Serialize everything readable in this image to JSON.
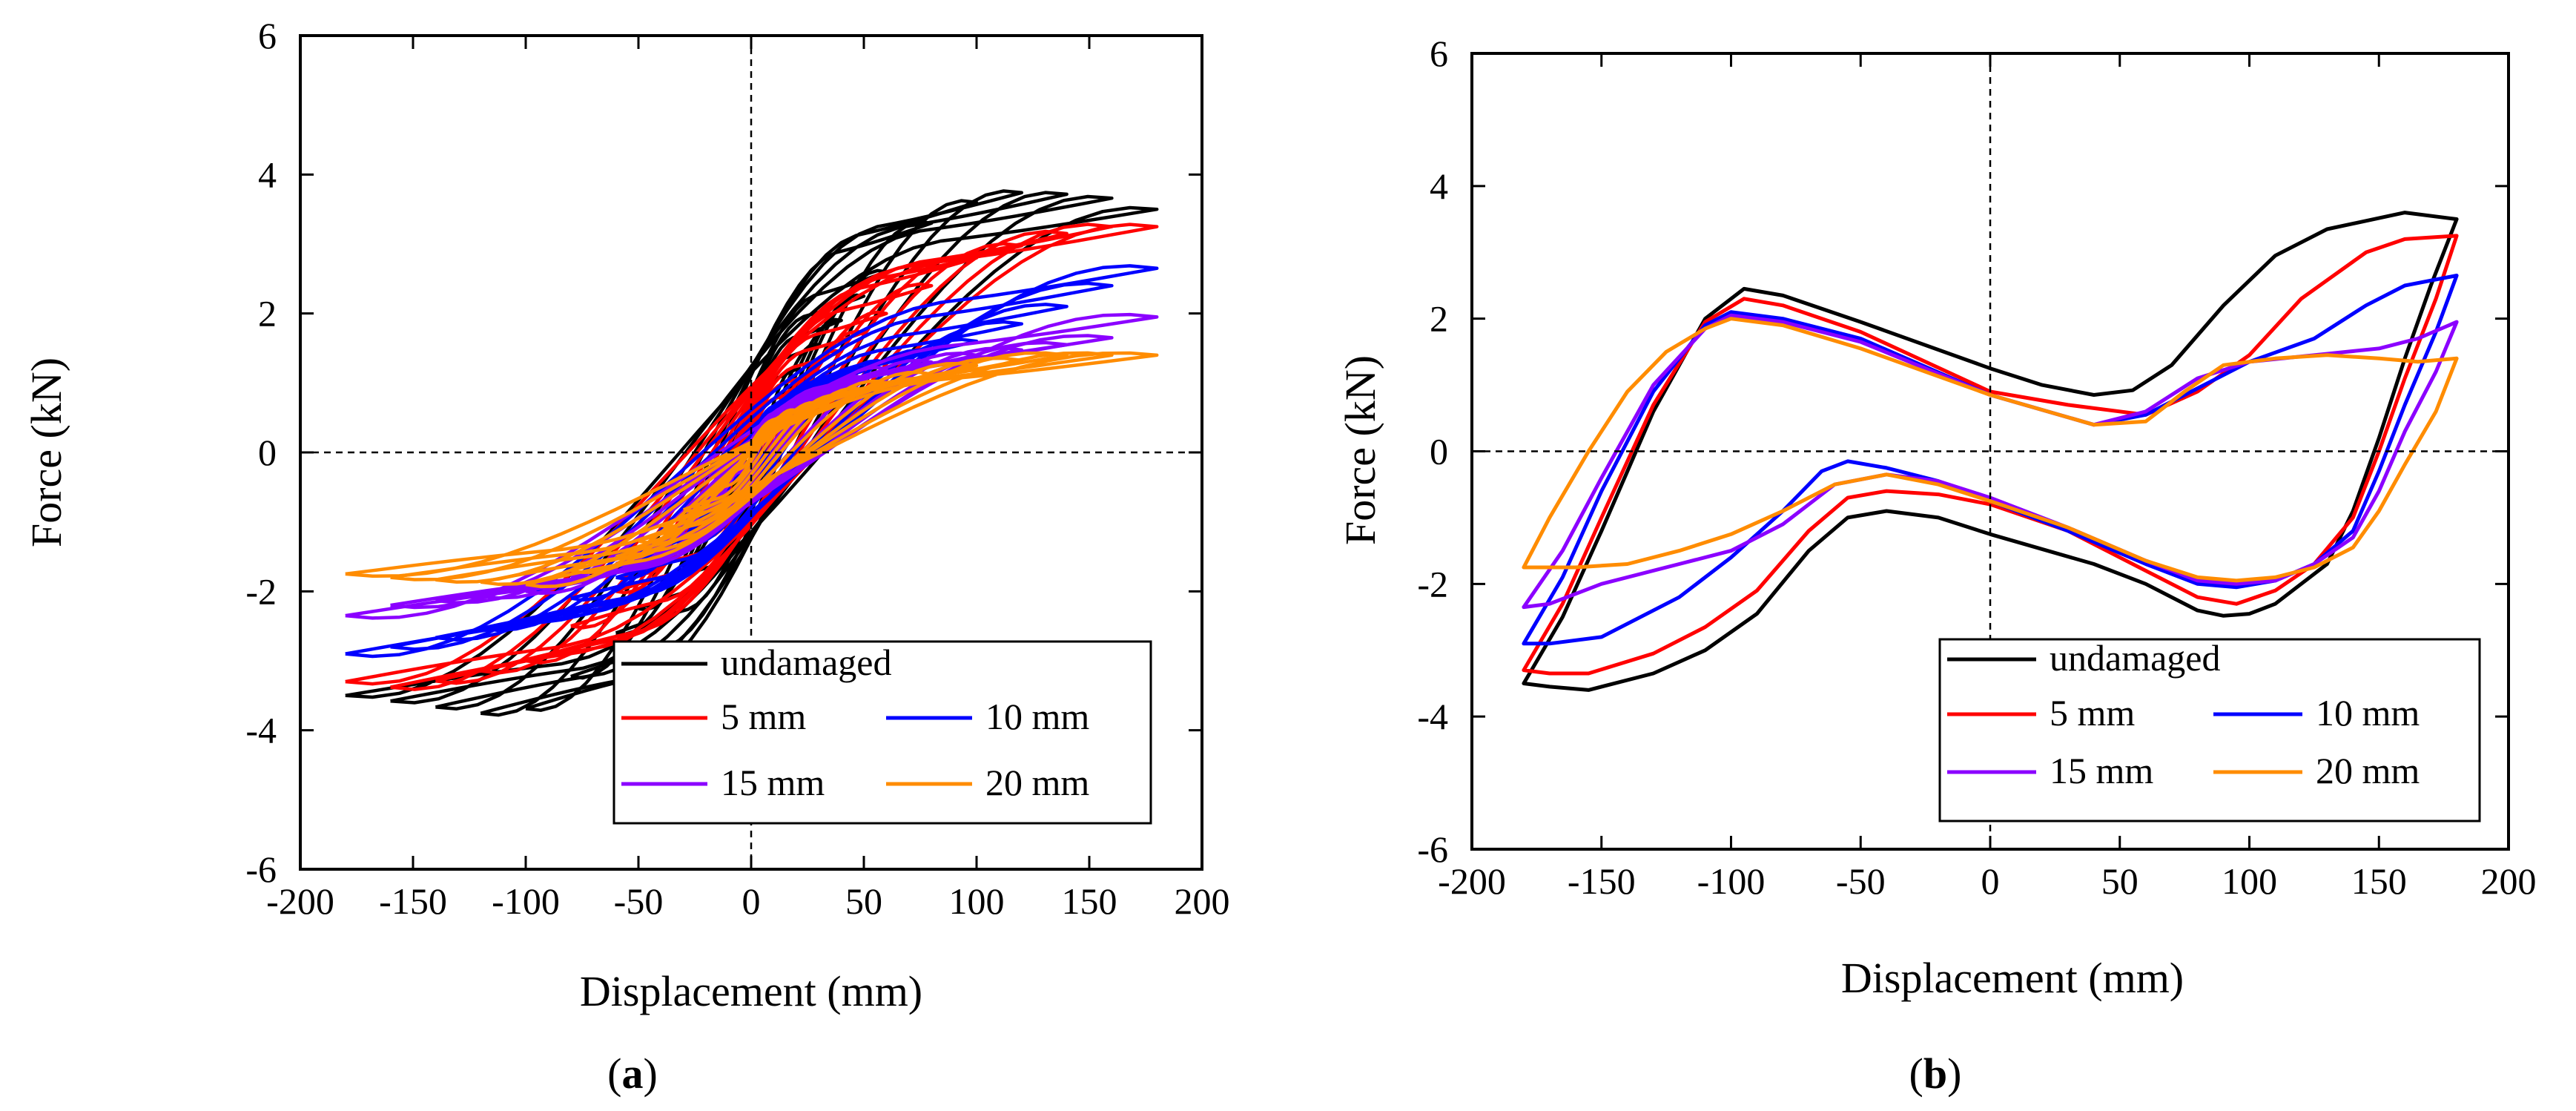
{
  "chart_data": [
    {
      "type": "line",
      "panel_label": {
        "open": "(",
        "letter": "a",
        "close": ")"
      },
      "xlabel": "Displacement (mm)",
      "ylabel": "Force (kN)",
      "xlim": [
        -200,
        200
      ],
      "ylim": [
        -6,
        6
      ],
      "xticks": [
        -200,
        -150,
        -100,
        -50,
        0,
        50,
        100,
        150,
        200
      ],
      "yticks": [
        -6,
        -4,
        -2,
        0,
        2,
        4,
        6
      ],
      "zero_lines": "dashed",
      "legend_position": "bottom-right",
      "curve_kind": "hysteresis loops, multiple cycles per series",
      "series": [
        {
          "name": "undamaged",
          "color": "#000000",
          "peak_displacements_mm": [
            10,
            20,
            30,
            40,
            50,
            60,
            80,
            100,
            120,
            140,
            160,
            180
          ],
          "envelope": {
            "x": [
              -180,
              -155,
              -110,
              -92,
              -60,
              -20,
              20,
              60,
              80,
              110,
              155,
              180
            ],
            "y": [
              -3.5,
              -3.6,
              -3.8,
              -3.6,
              -2.6,
              -1.2,
              1.2,
              2.6,
              3.3,
              3.75,
              3.7,
              3.5
            ]
          }
        },
        {
          "name": "5  mm",
          "color": "#ff0000",
          "peak_displacements_mm": [
            10,
            20,
            30,
            40,
            50,
            60,
            80,
            100,
            120,
            140,
            160,
            180
          ],
          "envelope": {
            "x": [
              -180,
              -155,
              -100,
              -60,
              -20,
              20,
              60,
              100,
              140,
              160,
              180
            ],
            "y": [
              -3.3,
              -3.4,
              -3.0,
              -2.0,
              -0.9,
              0.9,
              2.0,
              2.8,
              3.15,
              3.25,
              3.25
            ]
          }
        },
        {
          "name": "10 mm",
          "color": "#0000ff",
          "peak_displacements_mm": [
            10,
            20,
            30,
            40,
            50,
            60,
            80,
            100,
            120,
            140,
            160,
            180
          ],
          "envelope": {
            "x": [
              -180,
              -160,
              -100,
              -60,
              -20,
              20,
              60,
              100,
              140,
              160,
              180
            ],
            "y": [
              -2.9,
              -2.8,
              -2.4,
              -1.8,
              -0.8,
              0.8,
              1.3,
              1.6,
              2.1,
              2.4,
              2.65
            ]
          }
        },
        {
          "name": "15 mm",
          "color": "#8b00ff",
          "peak_displacements_mm": [
            10,
            20,
            30,
            40,
            50,
            60,
            80,
            100,
            120,
            140,
            160,
            180
          ],
          "envelope": {
            "x": [
              -180,
              -160,
              -100,
              -60,
              -20,
              20,
              60,
              100,
              140,
              160,
              180
            ],
            "y": [
              -2.35,
              -2.2,
              -2.0,
              -1.6,
              -0.7,
              0.7,
              1.2,
              1.4,
              1.55,
              1.65,
              1.95
            ]
          }
        },
        {
          "name": "20 mm",
          "color": "#ff8c00",
          "peak_displacements_mm": [
            10,
            20,
            30,
            40,
            50,
            60,
            80,
            100,
            120,
            140,
            160,
            180
          ],
          "envelope": {
            "x": [
              -180,
              -160,
              -100,
              -60,
              -20,
              20,
              60,
              100,
              140,
              160,
              180
            ],
            "y": [
              -1.75,
              -1.8,
              -1.9,
              -1.5,
              -0.6,
              0.6,
              1.0,
              1.25,
              1.4,
              1.4,
              1.4
            ]
          }
        }
      ]
    },
    {
      "type": "line",
      "panel_label": {
        "open": "(",
        "letter": "b",
        "close": ")"
      },
      "xlabel": "Displacement (mm)",
      "ylabel": "Force (kN)",
      "xlim": [
        -200,
        200
      ],
      "ylim": [
        -6,
        6
      ],
      "xticks": [
        -200,
        -150,
        -100,
        -50,
        0,
        50,
        100,
        150,
        200
      ],
      "yticks": [
        -6,
        -4,
        -2,
        0,
        2,
        4,
        6
      ],
      "zero_lines": "dashed",
      "legend_position": "bottom-right",
      "curve_kind": "single hysteresis loop at +/-180 mm",
      "series": [
        {
          "name": "undamaged",
          "color": "#000000",
          "x": [
            -180,
            -165,
            -150,
            -130,
            -110,
            -95,
            -80,
            -50,
            0,
            20,
            40,
            55,
            70,
            90,
            110,
            130,
            160,
            180,
            170,
            160,
            150,
            140,
            130,
            110,
            100,
            90,
            80,
            60,
            40,
            0,
            -20,
            -40,
            -55,
            -70,
            -90,
            -110,
            -130,
            -155,
            -170,
            -180
          ],
          "y": [
            -3.5,
            -2.5,
            -1.2,
            0.6,
            2.0,
            2.45,
            2.35,
            1.95,
            1.25,
            1.0,
            0.85,
            0.92,
            1.3,
            2.2,
            2.95,
            3.35,
            3.6,
            3.5,
            2.5,
            1.4,
            0.2,
            -0.9,
            -1.7,
            -2.3,
            -2.45,
            -2.48,
            -2.4,
            -2.0,
            -1.7,
            -1.25,
            -1.0,
            -0.9,
            -1.0,
            -1.5,
            -2.45,
            -3.0,
            -3.35,
            -3.6,
            -3.55,
            -3.5
          ]
        },
        {
          "name": "5  mm",
          "color": "#ff0000",
          "x": [
            -180,
            -165,
            -150,
            -130,
            -110,
            -95,
            -80,
            -50,
            0,
            30,
            60,
            80,
            100,
            120,
            145,
            160,
            180,
            172,
            160,
            150,
            140,
            125,
            110,
            95,
            80,
            60,
            30,
            0,
            -20,
            -40,
            -55,
            -70,
            -90,
            -110,
            -130,
            -155,
            -170,
            -180
          ],
          "y": [
            -3.3,
            -2.3,
            -1.0,
            0.7,
            1.95,
            2.3,
            2.2,
            1.8,
            0.9,
            0.7,
            0.55,
            0.9,
            1.45,
            2.3,
            3.0,
            3.2,
            3.25,
            2.3,
            1.1,
            0.0,
            -1.0,
            -1.7,
            -2.1,
            -2.3,
            -2.2,
            -1.8,
            -1.2,
            -0.8,
            -0.65,
            -0.6,
            -0.7,
            -1.2,
            -2.1,
            -2.65,
            -3.05,
            -3.35,
            -3.35,
            -3.3
          ]
        },
        {
          "name": "10 mm",
          "color": "#0000ff",
          "x": [
            -180,
            -165,
            -150,
            -130,
            -110,
            -100,
            -80,
            -50,
            0,
            40,
            60,
            80,
            100,
            125,
            145,
            160,
            180,
            172,
            160,
            150,
            140,
            125,
            110,
            95,
            80,
            60,
            30,
            0,
            -20,
            -40,
            -55,
            -65,
            -80,
            -100,
            -120,
            -150,
            -170,
            -180
          ],
          "y": [
            -2.9,
            -1.9,
            -0.6,
            0.9,
            1.9,
            2.1,
            2.0,
            1.7,
            0.85,
            0.4,
            0.55,
            0.95,
            1.35,
            1.7,
            2.2,
            2.5,
            2.65,
            1.8,
            0.7,
            -0.3,
            -1.2,
            -1.7,
            -1.95,
            -2.05,
            -2.0,
            -1.7,
            -1.2,
            -0.75,
            -0.45,
            -0.25,
            -0.15,
            -0.3,
            -0.9,
            -1.6,
            -2.2,
            -2.8,
            -2.9,
            -2.9
          ]
        },
        {
          "name": "15 mm",
          "color": "#8b00ff",
          "x": [
            -180,
            -165,
            -150,
            -130,
            -110,
            -100,
            -80,
            -50,
            0,
            40,
            60,
            80,
            100,
            125,
            150,
            165,
            180,
            172,
            160,
            150,
            140,
            125,
            110,
            95,
            80,
            60,
            30,
            0,
            -20,
            -40,
            -60,
            -80,
            -100,
            -120,
            -150,
            -170,
            -180
          ],
          "y": [
            -2.35,
            -1.5,
            -0.4,
            1.0,
            1.85,
            2.05,
            1.95,
            1.65,
            0.85,
            0.4,
            0.6,
            1.1,
            1.35,
            1.45,
            1.55,
            1.7,
            1.95,
            1.2,
            0.3,
            -0.6,
            -1.3,
            -1.7,
            -1.95,
            -2.0,
            -1.95,
            -1.65,
            -1.15,
            -0.7,
            -0.45,
            -0.35,
            -0.5,
            -1.1,
            -1.5,
            -1.7,
            -2.0,
            -2.3,
            -2.35
          ]
        },
        {
          "name": "20 mm",
          "color": "#ff8c00",
          "x": [
            -180,
            -170,
            -155,
            -140,
            -125,
            -110,
            -100,
            -80,
            -50,
            0,
            40,
            60,
            75,
            90,
            110,
            130,
            150,
            165,
            180,
            172,
            160,
            150,
            140,
            125,
            110,
            95,
            80,
            60,
            30,
            0,
            -20,
            -40,
            -60,
            -80,
            -100,
            -120,
            -140,
            -160,
            -180
          ],
          "y": [
            -1.75,
            -1.0,
            0.0,
            0.9,
            1.5,
            1.85,
            2.0,
            1.9,
            1.55,
            0.85,
            0.4,
            0.45,
            0.9,
            1.3,
            1.4,
            1.45,
            1.4,
            1.35,
            1.4,
            0.6,
            -0.2,
            -0.9,
            -1.45,
            -1.75,
            -1.9,
            -1.95,
            -1.9,
            -1.65,
            -1.15,
            -0.75,
            -0.5,
            -0.35,
            -0.5,
            -0.9,
            -1.25,
            -1.5,
            -1.7,
            -1.75,
            -1.75
          ]
        }
      ]
    }
  ]
}
